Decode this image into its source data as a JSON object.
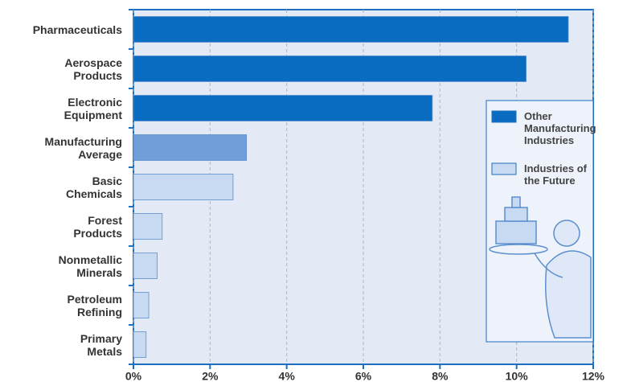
{
  "chart_data": {
    "type": "bar",
    "orientation": "horizontal",
    "categories": [
      "Pharmaceuticals",
      "Aerospace\nProducts",
      "Electronic\nEquipment",
      "Manufacturing\nAverage",
      "Basic\nChemicals",
      "Forest\nProducts",
      "Nonmetallic\nMinerals",
      "Petroleum\nRefining",
      "Primary\nMetals"
    ],
    "values": [
      11.35,
      10.25,
      7.8,
      2.95,
      2.6,
      0.75,
      0.62,
      0.4,
      0.33
    ],
    "colors": [
      "#0a6cc0",
      "#0a6cc0",
      "#0a6cc0",
      "#6f9ed8",
      "#c8daf1",
      "#c8daf1",
      "#c8daf1",
      "#c8daf1",
      "#c8daf1"
    ],
    "xlim": [
      0,
      12
    ],
    "xticks": [
      {
        "value": 0,
        "label": "0%"
      },
      {
        "value": 2,
        "label": "2%"
      },
      {
        "value": 4,
        "label": "4%"
      },
      {
        "value": 6,
        "label": "6%"
      },
      {
        "value": 8,
        "label": "8%"
      },
      {
        "value": 10,
        "label": "10%"
      },
      {
        "value": 12,
        "label": "12%"
      }
    ],
    "grid": true,
    "legend": [
      {
        "label": "Other Manufacturing Industries",
        "color": "#0a6cc0"
      },
      {
        "label": "Industries of the Future",
        "color": "#c8daf1"
      }
    ]
  }
}
